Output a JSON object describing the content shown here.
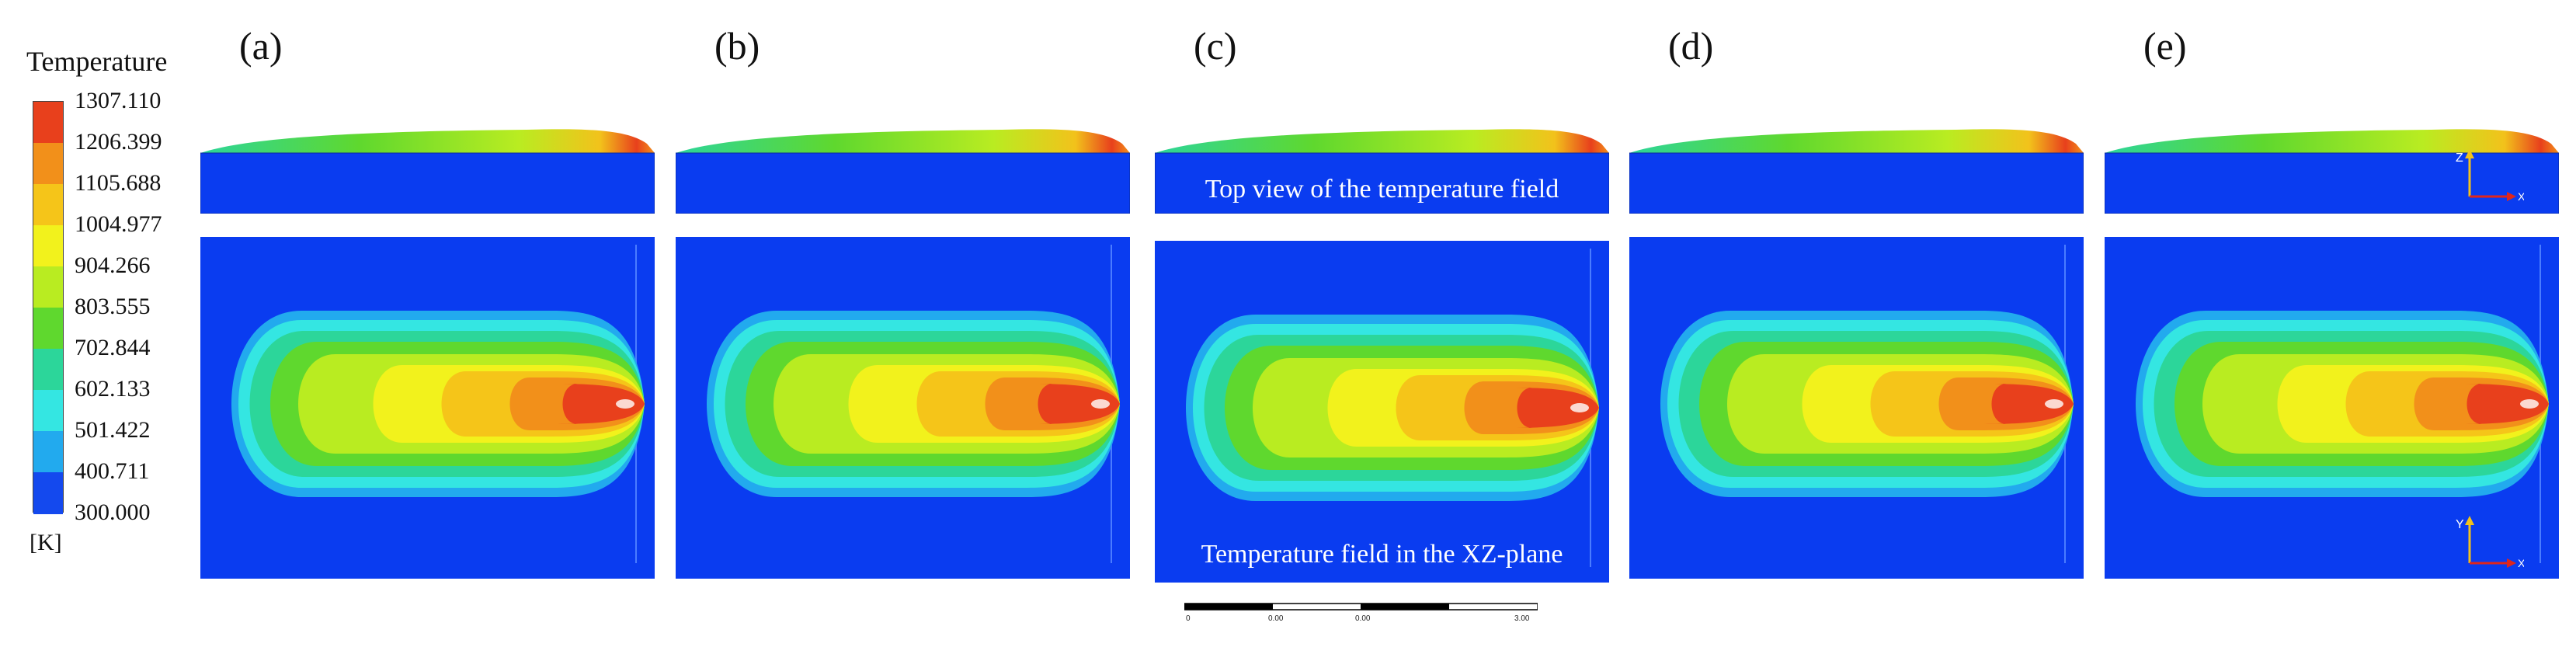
{
  "legend": {
    "title": "Temperature",
    "unit": "[K]",
    "ticks": [
      "1307.110",
      "1206.399",
      "1105.688",
      "1004.977",
      "904.266",
      "803.555",
      "702.844",
      "602.133",
      "501.422",
      "400.711",
      "300.000"
    ],
    "colors": [
      "#e8401c",
      "#f2901a",
      "#f5c519",
      "#f2f21c",
      "#b9ec21",
      "#5fd82e",
      "#2cd69a",
      "#34e6e2",
      "#22aaee",
      "#1449ee"
    ]
  },
  "panels": [
    {
      "label": "(a)"
    },
    {
      "label": "(b)"
    },
    {
      "label": "(c)"
    },
    {
      "label": "(d)"
    },
    {
      "label": "(e)"
    }
  ],
  "captions": {
    "top": "Top view of the temperature field",
    "bottom": "Temperature field in the XZ-plane"
  },
  "axes": {
    "top": {
      "vertical": "Z",
      "horizontal": "X"
    },
    "bottom": {
      "vertical": "Y",
      "horizontal": "X"
    }
  },
  "scale_bar": {
    "labels": [
      "0",
      "0.00",
      "0.00",
      "3.00"
    ]
  },
  "colors": {
    "background_field": "#0a3cf0",
    "axis_arrow_vertical": "#f2c21b",
    "axis_arrow_horizontal": "#e0261b"
  }
}
